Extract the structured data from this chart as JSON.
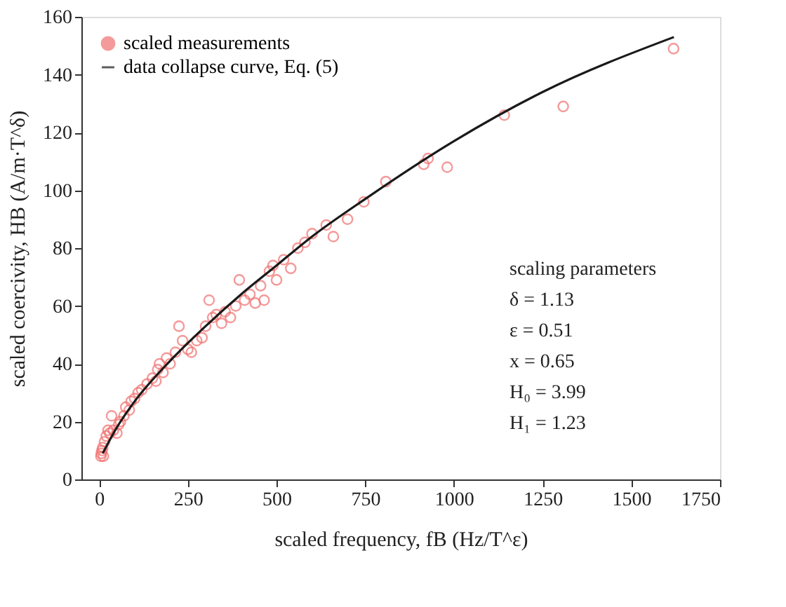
{
  "chart_data": {
    "type": "scatter",
    "xlabel": "scaled frequency, fB (Hz/T^ε)",
    "ylabel": "scaled coercivity, HB (A/m·T^δ)",
    "xlim": [
      -50,
      1750
    ],
    "xticks": [
      0,
      250,
      500,
      750,
      1000,
      1250,
      1500,
      1750
    ],
    "ylim": [
      0,
      160
    ],
    "yticks": [
      0,
      20,
      40,
      60,
      80,
      100,
      120,
      140,
      160
    ],
    "grid": false,
    "legend": "top left",
    "marker": "circle",
    "series": [
      {
        "name": "scaled measurements",
        "type": "scatter",
        "color": "#f07070",
        "x": [
          5,
          6,
          8,
          10,
          12,
          15,
          20,
          25,
          30,
          35,
          40,
          50,
          55,
          60,
          70,
          75,
          85,
          90,
          100,
          110,
          120,
          135,
          150,
          160,
          165,
          170,
          180,
          190,
          200,
          215,
          225,
          235,
          250,
          260,
          275,
          290,
          300,
          310,
          320,
          330,
          345,
          355,
          370,
          385,
          395,
          410,
          425,
          440,
          455,
          465,
          480,
          490,
          500,
          520,
          540,
          560,
          580,
          600,
          640,
          660,
          700,
          746,
          808,
          915,
          927,
          981,
          1142,
          1308,
          1619
        ],
        "values": [
          8,
          9,
          10,
          11,
          8,
          13,
          15,
          17,
          16,
          22,
          17,
          16,
          19,
          20,
          22,
          25,
          24,
          27,
          28,
          30,
          31,
          33,
          35,
          34,
          38,
          40,
          37,
          42,
          40,
          44,
          53,
          48,
          45,
          44,
          48,
          49,
          53,
          62,
          56,
          57,
          54,
          58,
          56,
          60,
          69,
          62,
          64,
          61,
          67,
          62,
          72,
          74,
          69,
          76,
          73,
          80,
          82,
          85,
          88,
          84,
          90,
          96,
          103,
          109,
          111,
          108,
          126,
          129,
          149
        ]
      },
      {
        "name": "data collapse curve, Eq. (5)",
        "type": "line",
        "color": "#1a1a1a",
        "line_style": "solid",
        "marker": "none",
        "x": [
          10,
          50,
          100,
          200,
          300,
          400,
          500,
          600,
          750,
          1000,
          1250,
          1620
        ],
        "values": [
          9,
          18,
          27,
          41,
          53,
          64,
          74,
          84,
          97,
          117,
          134,
          153
        ]
      }
    ],
    "annotations": [
      "scaling parameters",
      "δ = 1.13",
      "ε = 0.51",
      "x = 0.65",
      "H₀ = 3.99",
      "H₁ = 1.23"
    ]
  }
}
